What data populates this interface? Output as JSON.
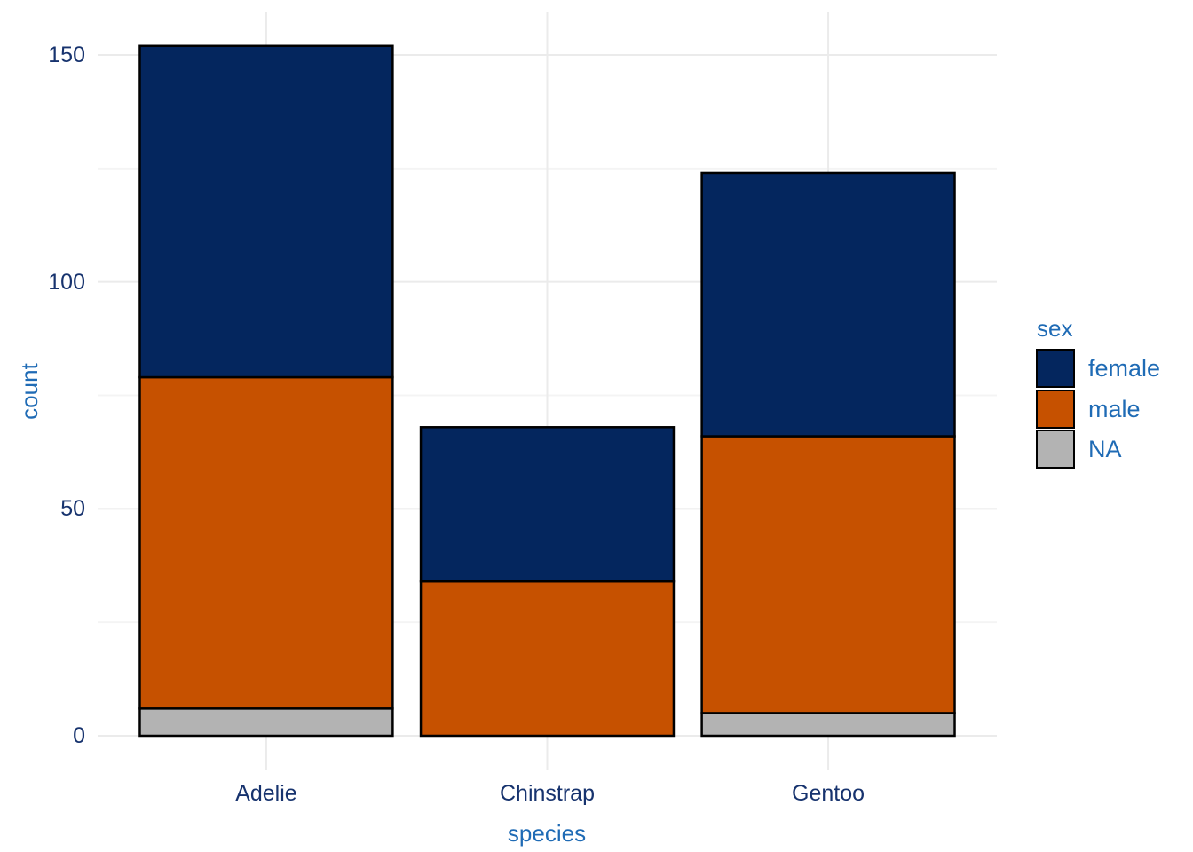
{
  "chart_data": {
    "type": "bar",
    "stacked": true,
    "title": "",
    "xlabel": "species",
    "ylabel": "count",
    "categories": [
      "Adelie",
      "Chinstrap",
      "Gentoo"
    ],
    "series": [
      {
        "name": "female",
        "color": "#04265e",
        "values": [
          73,
          34,
          58
        ]
      },
      {
        "name": "male",
        "color": "#c65100",
        "values": [
          73,
          34,
          61
        ]
      },
      {
        "name": "NA",
        "color": "#b3b3b3",
        "values": [
          6,
          0,
          5
        ]
      }
    ],
    "totals": [
      152,
      68,
      124
    ],
    "yticks": [
      0,
      50,
      100,
      150
    ],
    "ylim": [
      0,
      167
    ],
    "grid": "on",
    "legend": {
      "title": "sex",
      "position": "right"
    },
    "colors": {
      "bar_outline": "#000000",
      "grid_major": "#ebebeb",
      "grid_minor": "#f4f4f4",
      "axis_text": "#17336e",
      "axis_title_text": "#1f6bb5",
      "background": "#ffffff"
    }
  }
}
